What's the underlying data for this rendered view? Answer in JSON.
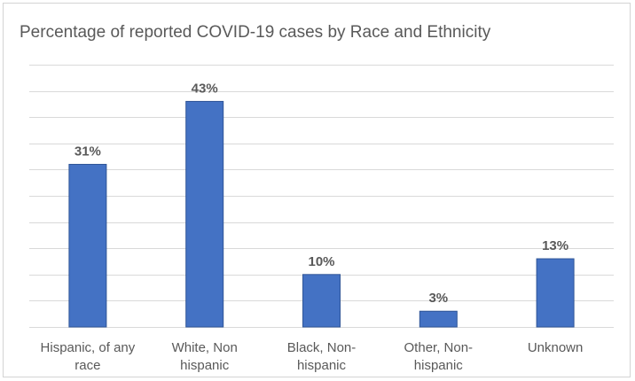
{
  "chart_data": {
    "type": "bar",
    "title": "Percentage of reported COVID-19 cases by Race and Ethnicity",
    "categories": [
      [
        "Hispanic, of any",
        "race"
      ],
      [
        "White, Non",
        "hispanic"
      ],
      [
        "Black, Non-",
        "hispanic"
      ],
      [
        "Other, Non-",
        "hispanic"
      ],
      [
        "Unknown"
      ]
    ],
    "values": [
      31,
      43,
      10,
      3,
      13
    ],
    "data_labels": [
      "31%",
      "43%",
      "10%",
      "3%",
      "13%"
    ],
    "xlabel": "",
    "ylabel": "",
    "ylim": [
      0,
      50
    ],
    "grid": true,
    "legend": "none",
    "colors": {
      "bar": "#4472c4",
      "bar_edge": "#2f5597",
      "grid": "#d9d9d9",
      "text": "#595959"
    }
  }
}
